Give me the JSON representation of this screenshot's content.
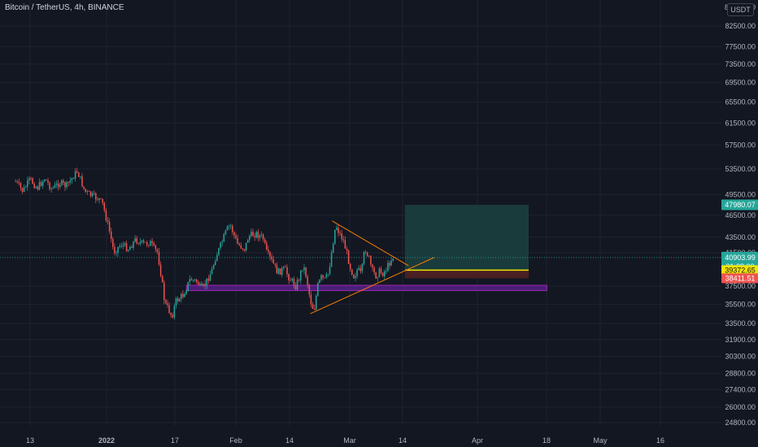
{
  "header": {
    "symbol_title": "Bitcoin / TetherUS, 4h, BINANCE",
    "currency_button": "USDT"
  },
  "colors": {
    "background": "#131722",
    "grid": "#1f2330",
    "axis_text": "#b2b5be",
    "candle_up": "#26a69a",
    "candle_down": "#ef5350",
    "trendline": "#f57c00",
    "support_zone_fill": "#4a1e78",
    "support_zone_border": "#9c27b0",
    "target_zone": "#1a3b3c",
    "stop_zone": "#4a1f24",
    "entry_line": "#f2e600",
    "last_price_line": "#26a69a"
  },
  "chart_data": {
    "type": "candlestick",
    "x_axis": {
      "tick_labels": [
        "13",
        "2022",
        "17",
        "Feb",
        "14",
        "Mar",
        "14",
        "Apr",
        "18",
        "May",
        "16"
      ]
    },
    "y_axis": {
      "scale": "log",
      "range": [
        23800,
        88500
      ],
      "tick_labels": [
        82500,
        77500,
        73500,
        69500,
        65500,
        61500,
        57500,
        53500,
        49500,
        46500,
        43500,
        41500,
        37500,
        35500,
        33500,
        31900,
        30300,
        28800,
        27400,
        26000,
        24800
      ],
      "tick_label_text": [
        "82500.00",
        "77500.00",
        "73500.00",
        "69500.00",
        "65500.00",
        "61500.00",
        "57500.00",
        "53500.00",
        "49500.00",
        "46500.00",
        "43500.00",
        "41500.00",
        "37500.00",
        "35500.00",
        "33500.00",
        "31900.00",
        "30300.00",
        "28800.00",
        "27400.00",
        "26000.00",
        "24800.00"
      ],
      "top_partial_label": "8",
      "top_right_label": "0"
    },
    "price_path": [
      {
        "date": "2022-01-09",
        "close": 51500
      },
      {
        "date": "2022-01-11",
        "close": 50000
      },
      {
        "date": "2022-01-13",
        "close": 51800
      },
      {
        "date": "2022-01-15",
        "close": 50500
      },
      {
        "date": "2022-01-17",
        "close": 52000
      },
      {
        "date": "2022-01-19",
        "close": 50300
      },
      {
        "date": "2022-01-21",
        "close": 51300
      },
      {
        "date": "2022-01-23",
        "close": 50800
      },
      {
        "date": "2022-01-25",
        "close": 52400
      },
      {
        "date": "2022-01-26",
        "close": 53200
      },
      {
        "date": "2022-01-28",
        "close": 50000
      },
      {
        "date": "2022-01-30",
        "close": 49300
      },
      {
        "date": "2022-02-01",
        "close": 48800
      },
      {
        "date": "2022-02-02",
        "close": 48000
      },
      {
        "date": "2022-02-04",
        "close": 43900
      },
      {
        "date": "2022-02-05",
        "close": 41600
      },
      {
        "date": "2022-02-07",
        "close": 42600
      },
      {
        "date": "2022-02-09",
        "close": 42000
      },
      {
        "date": "2022-02-11",
        "close": 43200
      },
      {
        "date": "2022-02-13",
        "close": 42600
      },
      {
        "date": "2022-02-15",
        "close": 42800
      },
      {
        "date": "2022-02-16",
        "close": 42000
      },
      {
        "date": "2022-02-17",
        "close": 41600
      },
      {
        "date": "2022-02-18",
        "close": 38800
      },
      {
        "date": "2022-02-19",
        "close": 35600
      },
      {
        "date": "2022-02-20",
        "close": 35000
      },
      {
        "date": "2022-02-21",
        "close": 34200
      },
      {
        "date": "2022-02-22",
        "close": 35800
      },
      {
        "date": "2022-02-24",
        "close": 36500
      },
      {
        "date": "2022-02-25",
        "close": 37400
      },
      {
        "date": "2022-02-26",
        "close": 38300
      },
      {
        "date": "2022-02-28",
        "close": 38000
      },
      {
        "date": "2022-03-01",
        "close": 37100
      },
      {
        "date": "2022-03-02",
        "close": 37600
      },
      {
        "date": "2022-03-04",
        "close": 39400
      },
      {
        "date": "2022-03-05",
        "close": 41000
      },
      {
        "date": "2022-03-06",
        "close": 42000
      },
      {
        "date": "2022-03-08",
        "close": 44400
      },
      {
        "date": "2022-03-09",
        "close": 45200
      },
      {
        "date": "2022-03-10",
        "close": 43800
      },
      {
        "date": "2022-03-11",
        "close": 42600
      },
      {
        "date": "2022-03-13",
        "close": 42000
      },
      {
        "date": "2022-03-14",
        "close": 43600
      },
      {
        "date": "2022-03-16",
        "close": 44000
      },
      {
        "date": "2022-03-18",
        "close": 43400
      },
      {
        "date": "2022-03-19",
        "close": 41500
      },
      {
        "date": "2022-03-21",
        "close": 40000
      },
      {
        "date": "2022-03-22",
        "close": 39100
      },
      {
        "date": "2022-03-24",
        "close": 39500
      },
      {
        "date": "2022-03-25",
        "close": 38600
      },
      {
        "date": "2022-03-27",
        "close": 37500
      },
      {
        "date": "2022-03-28",
        "close": 38500
      },
      {
        "date": "2022-03-29",
        "close": 40000
      },
      {
        "date": "2022-03-30",
        "close": 38500
      },
      {
        "date": "2022-03-31",
        "close": 35900
      },
      {
        "date": "2022-04-01",
        "close": 34800
      },
      {
        "date": "2022-04-02",
        "close": 37500
      },
      {
        "date": "2022-04-03",
        "close": 38500
      },
      {
        "date": "2022-04-04",
        "close": 38200
      },
      {
        "date": "2022-04-05",
        "close": 39000
      },
      {
        "date": "2022-04-06",
        "close": 42100
      },
      {
        "date": "2022-04-07",
        "close": 45200
      },
      {
        "date": "2022-04-08",
        "close": 44000
      },
      {
        "date": "2022-04-09",
        "close": 43200
      },
      {
        "date": "2022-04-10",
        "close": 41500
      },
      {
        "date": "2022-04-11",
        "close": 39700
      },
      {
        "date": "2022-04-12",
        "close": 38600
      },
      {
        "date": "2022-04-13",
        "close": 39500
      },
      {
        "date": "2022-04-14",
        "close": 38800
      },
      {
        "date": "2022-04-15",
        "close": 42100
      },
      {
        "date": "2022-04-16",
        "close": 41000
      },
      {
        "date": "2022-04-17",
        "close": 39300
      },
      {
        "date": "2022-04-18",
        "close": 38700
      },
      {
        "date": "2022-04-19",
        "close": 39200
      },
      {
        "date": "2022-04-20",
        "close": 39000
      },
      {
        "date": "2022-04-21",
        "close": 39600
      },
      {
        "date": "2022-04-22",
        "close": 40500
      },
      {
        "date": "2022-04-23",
        "close": 41200
      }
    ],
    "trendlines": [
      {
        "name": "descending resistance",
        "from": {
          "date": "2022-04-06",
          "price": 45700
        },
        "to": {
          "date": "2022-04-27",
          "price": 39900
        }
      },
      {
        "name": "ascending support",
        "from": {
          "date": "2022-03-31",
          "price": 34500
        },
        "to": {
          "date": "2022-05-04",
          "price": 40900
        }
      }
    ],
    "support_zone": {
      "from_date": "2022-02-25",
      "to_date": "2022-06-04",
      "price_low": 37000,
      "price_high": 37600
    },
    "position": {
      "from_date": "2022-04-26",
      "to_date": "2022-05-30",
      "target": 47980.07,
      "entry": 39372.65,
      "stop": 38411.51
    },
    "price_labels": {
      "target": "47980.07",
      "last_price": "40903.99",
      "countdown": "01:28:00",
      "entry": "39372.65",
      "stop": "38411.51"
    },
    "last_price": 40903.99
  }
}
